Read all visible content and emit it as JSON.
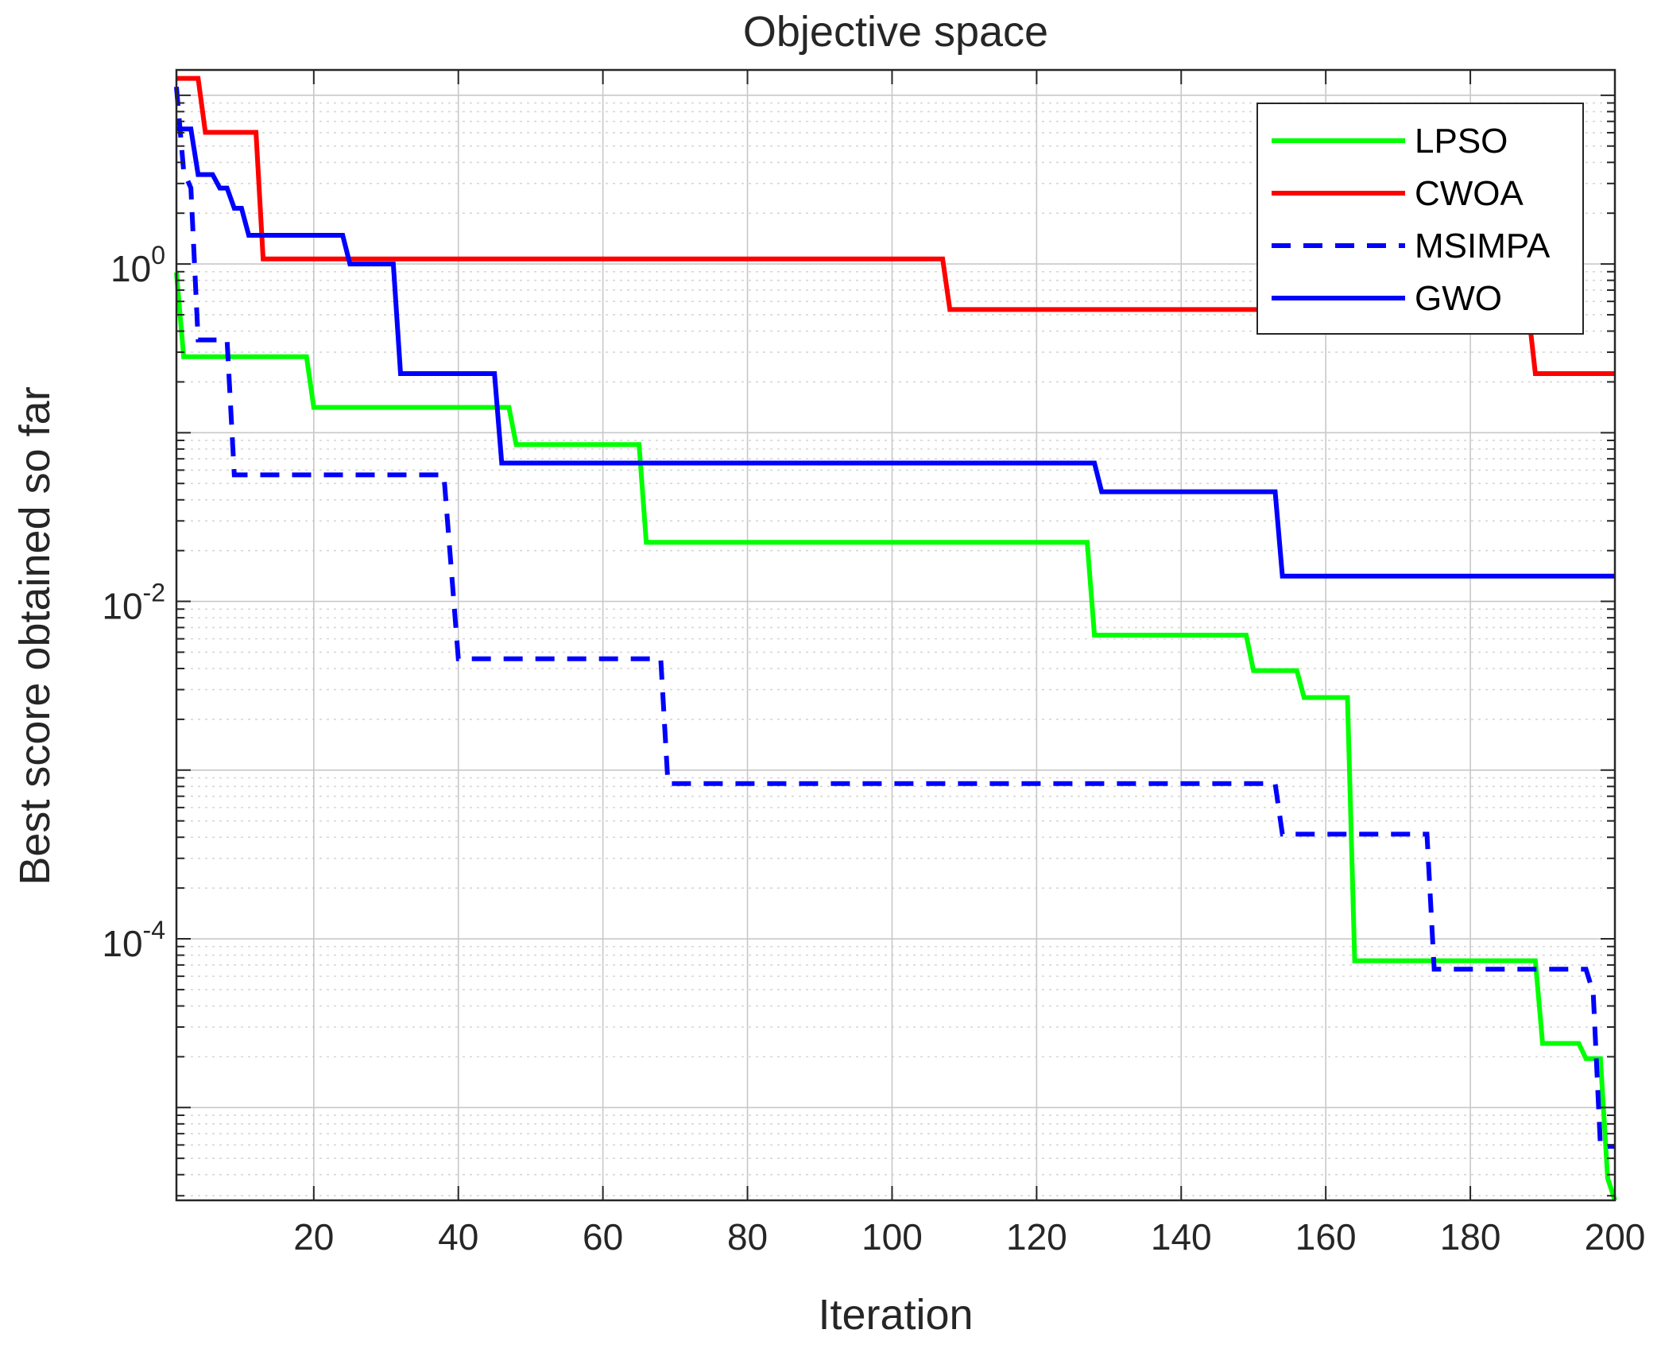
{
  "chart_data": {
    "type": "line",
    "title": "Objective space",
    "xlabel": "Iteration",
    "ylabel": "Best score obtained so far",
    "xscale": "linear",
    "yscale": "log",
    "xlim": [
      1,
      200
    ],
    "ylim_log10": [
      -5.55,
      1.15
    ],
    "grid": "on",
    "legend_location": "top-right",
    "x_ticks": [
      {
        "value": 20,
        "label": "20"
      },
      {
        "value": 40,
        "label": "40"
      },
      {
        "value": 60,
        "label": "60"
      },
      {
        "value": 80,
        "label": "80"
      },
      {
        "value": 100,
        "label": "100"
      },
      {
        "value": 120,
        "label": "120"
      },
      {
        "value": 140,
        "label": "140"
      },
      {
        "value": 160,
        "label": "160"
      },
      {
        "value": 180,
        "label": "180"
      },
      {
        "value": 200,
        "label": "200"
      }
    ],
    "y_ticks": [
      {
        "log10": 0,
        "base": "10",
        "exp": "0"
      },
      {
        "log10": -2,
        "base": "10",
        "exp": "-2"
      },
      {
        "log10": -4,
        "base": "10",
        "exp": "-4"
      }
    ],
    "series": [
      {
        "name": "LPSO",
        "color": "#00ff00",
        "dash": "solid",
        "points": [
          [
            1,
            -0.05
          ],
          [
            2,
            -0.55
          ],
          [
            19,
            -0.55
          ],
          [
            20,
            -0.85
          ],
          [
            47,
            -0.85
          ],
          [
            48,
            -1.07
          ],
          [
            65,
            -1.07
          ],
          [
            66,
            -1.65
          ],
          [
            127,
            -1.65
          ],
          [
            128,
            -2.2
          ],
          [
            149,
            -2.2
          ],
          [
            150,
            -2.41
          ],
          [
            156,
            -2.41
          ],
          [
            157,
            -2.57
          ],
          [
            163,
            -2.57
          ],
          [
            164,
            -4.13
          ],
          [
            189,
            -4.13
          ],
          [
            190,
            -4.62
          ],
          [
            195,
            -4.62
          ],
          [
            196,
            -4.71
          ],
          [
            198,
            -4.71
          ],
          [
            199,
            -5.42
          ],
          [
            200,
            -5.55
          ]
        ]
      },
      {
        "name": "CWOA",
        "color": "#ff0000",
        "dash": "solid",
        "points": [
          [
            1,
            1.1
          ],
          [
            4,
            1.1
          ],
          [
            5,
            0.78
          ],
          [
            12,
            0.78
          ],
          [
            13,
            0.03
          ],
          [
            107,
            0.03
          ],
          [
            108,
            -0.27
          ],
          [
            188,
            -0.27
          ],
          [
            189,
            -0.65
          ],
          [
            200,
            -0.65
          ]
        ]
      },
      {
        "name": "MSIMPA",
        "color": "#0000ff",
        "dash": "dashed",
        "points": [
          [
            1,
            1.05
          ],
          [
            2,
            0.55
          ],
          [
            3,
            0.45
          ],
          [
            4,
            -0.45
          ],
          [
            8,
            -0.45
          ],
          [
            9,
            -1.25
          ],
          [
            38,
            -1.25
          ],
          [
            40,
            -2.34
          ],
          [
            68,
            -2.34
          ],
          [
            69,
            -3.08
          ],
          [
            153,
            -3.08
          ],
          [
            154,
            -3.38
          ],
          [
            174,
            -3.38
          ],
          [
            175,
            -4.18
          ],
          [
            196,
            -4.18
          ],
          [
            197,
            -4.32
          ],
          [
            198,
            -5.23
          ],
          [
            200,
            -5.23
          ]
        ]
      },
      {
        "name": "GWO",
        "color": "#0000ff",
        "dash": "solid",
        "points": [
          [
            1,
            0.8
          ],
          [
            3,
            0.8
          ],
          [
            4,
            0.53
          ],
          [
            6,
            0.53
          ],
          [
            7,
            0.45
          ],
          [
            8,
            0.45
          ],
          [
            9,
            0.33
          ],
          [
            10,
            0.33
          ],
          [
            11,
            0.17
          ],
          [
            24,
            0.17
          ],
          [
            25,
            0
          ],
          [
            31,
            0
          ],
          [
            32,
            -0.65
          ],
          [
            45,
            -0.65
          ],
          [
            46,
            -1.18
          ],
          [
            128,
            -1.18
          ],
          [
            129,
            -1.35
          ],
          [
            153,
            -1.35
          ],
          [
            154,
            -1.85
          ],
          [
            200,
            -1.85
          ]
        ]
      }
    ]
  }
}
